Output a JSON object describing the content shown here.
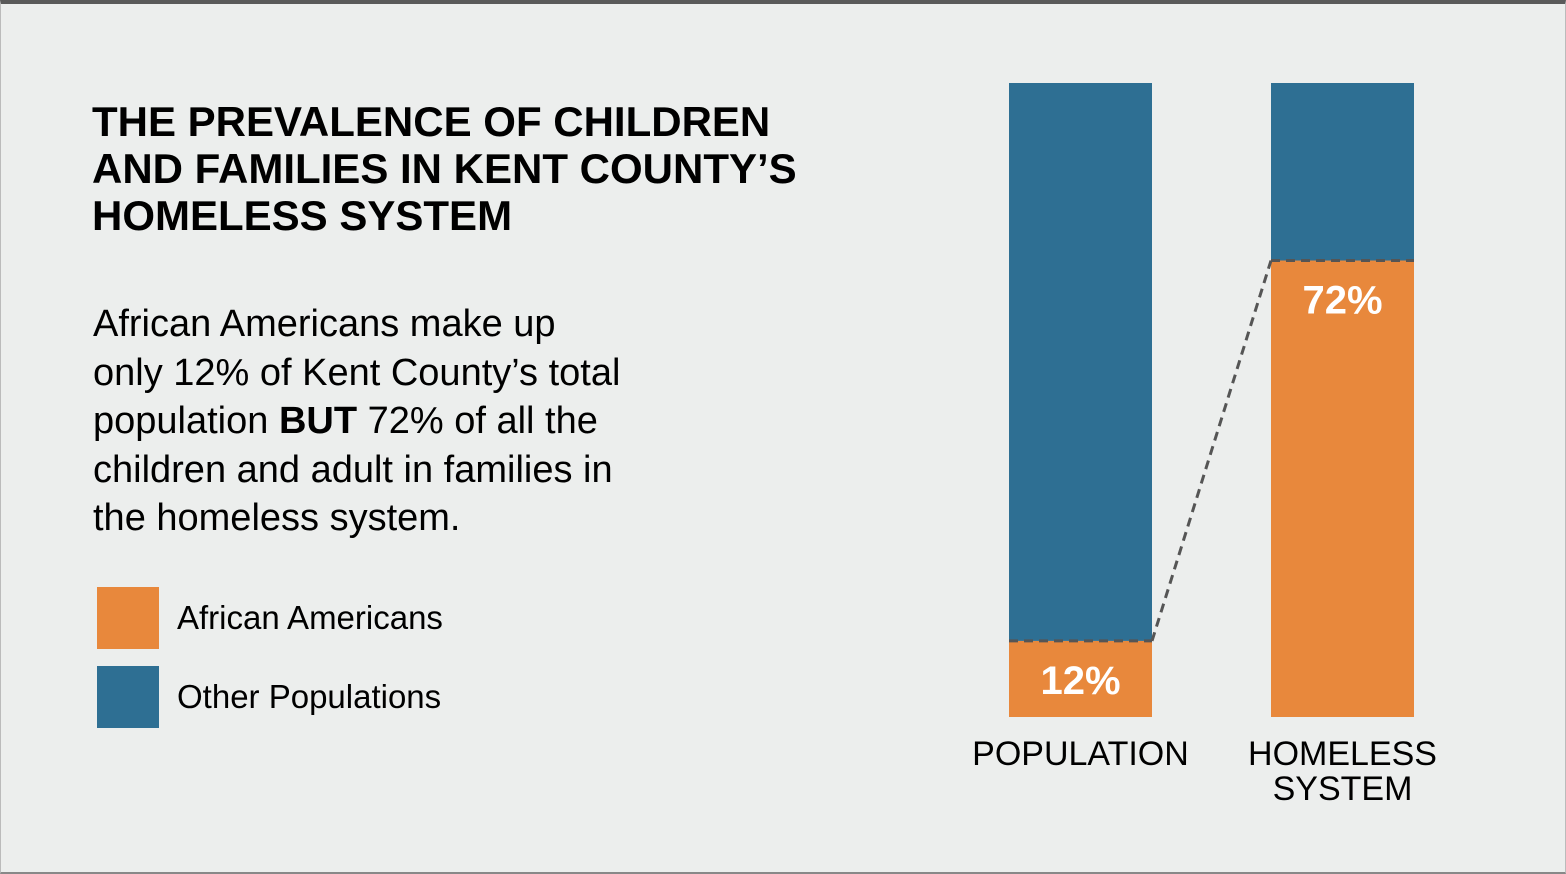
{
  "chart_data": {
    "type": "stacked_bar",
    "title": "THE PREVALENCE OF CHILDREN AND FAMILIES IN KENT COUNTY’S HOMELESS SYSTEM",
    "description": [
      "African Americans make up",
      "only 12% of Kent County’s total",
      "population ",
      "BUT",
      " 72% of all the",
      "children and adult in families in",
      "the homeless system."
    ],
    "categories": [
      "POPULATION",
      "HOMELESS SYSTEM"
    ],
    "series": [
      {
        "name": "African Americans",
        "color": "#e8883c",
        "values": [
          12,
          72
        ],
        "value_labels": [
          "12%",
          "72%"
        ]
      },
      {
        "name": "Other Populations",
        "color": "#2e6f93",
        "values": [
          88,
          28
        ]
      }
    ],
    "ylim": [
      0,
      100
    ]
  }
}
